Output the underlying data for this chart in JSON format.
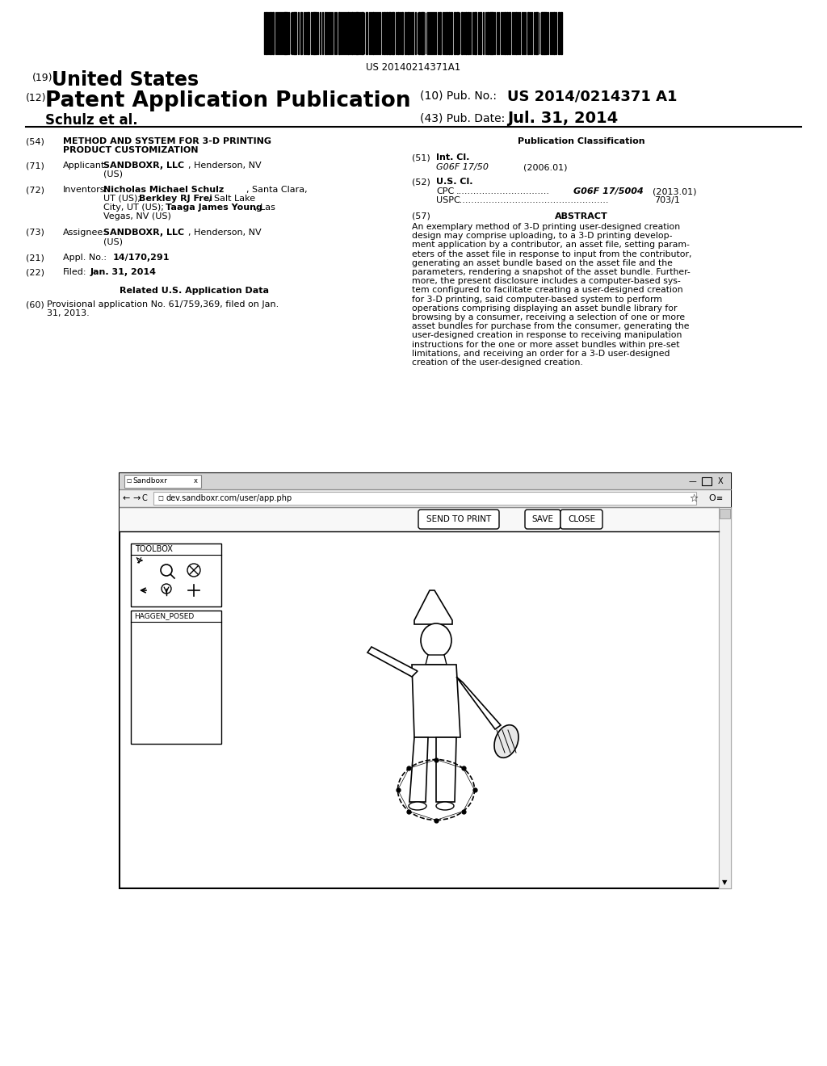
{
  "background_color": "#ffffff",
  "barcode_text": "US 20140214371A1",
  "header": {
    "num19": "(19)",
    "united_states": "United States",
    "num12": "(12)",
    "patent_app_pub": "Patent Application Publication",
    "num10": "(10) Pub. No.:",
    "pub_no": "US 2014/0214371 A1",
    "schulz": "Schulz et al.",
    "num43": "(43) Pub. Date:",
    "pub_date": "Jul. 31, 2014"
  },
  "right_col": {
    "pub_class_title": "Publication Classification",
    "abstract_text": "An exemplary method of 3-D printing user-designed creation design may comprise uploading, to a 3-D printing develop-ment application by a contributor, an asset file, setting param-eters of the asset file in response to input from the contributor, generating an asset bundle based on the asset file and the parameters, rendering a snapshot of the asset bundle. Further-more, the present disclosure includes a computer-based sys-tem configured to facilitate creating a user-designed creation for 3-D printing, said computer-based system to perform operations comprising displaying an asset bundle library for browsing by a consumer, receiving a selection of one or more asset bundles for purchase from the consumer, generating the user-designed creation in response to receiving manipulation instructions for the one or more asset bundles within pre-set limitations, and receiving an order for a 3-D user-designed creation of the user-designed creation."
  },
  "browser": {
    "tab_text": "Sandboxr",
    "url": "dev.sandboxr.com/user/app.php",
    "buttons": [
      "SEND TO PRINT",
      "SAVE",
      "CLOSE"
    ],
    "toolbox_label": "TOOLBOX",
    "haggen_label": "HAGGEN_POSED"
  }
}
